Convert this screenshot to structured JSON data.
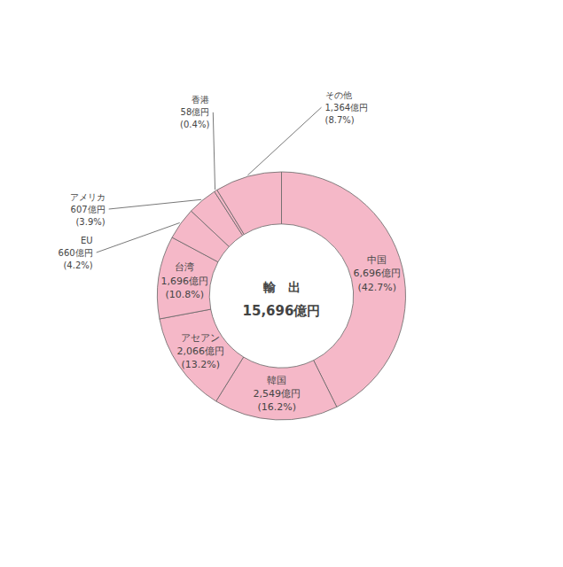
{
  "chart_data": {
    "type": "pie",
    "title": "輸　出",
    "subtitle": "15,696億円",
    "categories": [
      "中国",
      "韓国",
      "アセアン",
      "台湾",
      "EU",
      "アメリカ",
      "香港",
      "その他"
    ],
    "values": [
      42.7,
      16.2,
      13.2,
      10.8,
      4.2,
      3.9,
      0.4,
      8.7
    ],
    "value_labels": [
      "(42.7%)",
      "(16.2%)",
      "(13.2%)",
      "(10.8%)",
      "(4.2%)",
      "(3.9%)",
      "(0.4%)",
      "(8.7%)"
    ],
    "amounts": [
      6696,
      2549,
      2066,
      1696,
      660,
      607,
      58,
      1364
    ],
    "amount_labels": [
      "6,696億円",
      "2,549億円",
      "2,066億円",
      "1,696億円",
      "660億円",
      "607億円",
      "58億円",
      "1,364億円"
    ],
    "color": "#f5b8c8",
    "data_labels": true
  }
}
